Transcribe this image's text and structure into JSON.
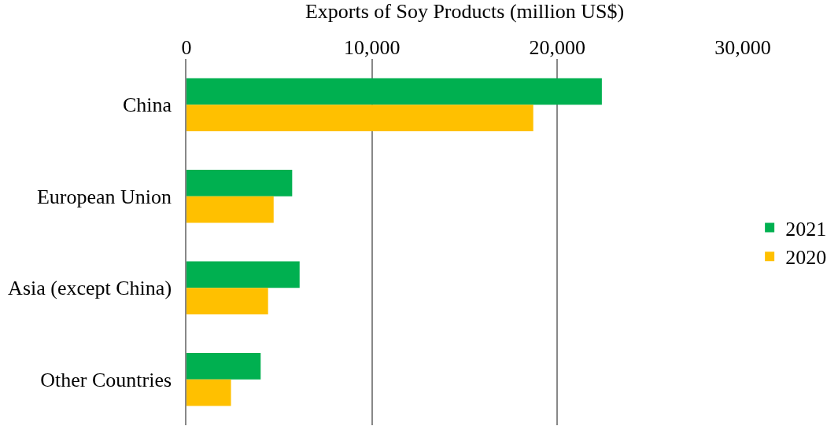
{
  "chart_data": {
    "type": "bar",
    "orientation": "horizontal",
    "xlabel": "Exports of Soy Products (million US$)",
    "categories": [
      "China",
      "European Union",
      "Asia (except China)",
      "Other Countries"
    ],
    "series": [
      {
        "name": "2021",
        "color": "#00b050",
        "values": [
          22400,
          5700,
          6100,
          4000
        ]
      },
      {
        "name": "2020",
        "color": "#ffc000",
        "values": [
          18700,
          4700,
          4400,
          2400
        ]
      }
    ],
    "xlim": [
      0,
      30000
    ],
    "xticks": [
      {
        "value": 0,
        "label": "0"
      },
      {
        "value": 10000,
        "label": "10,000"
      },
      {
        "value": 20000,
        "label": "20,000"
      },
      {
        "value": 30000,
        "label": "30,000"
      }
    ],
    "grid": "x",
    "legend": "right"
  }
}
